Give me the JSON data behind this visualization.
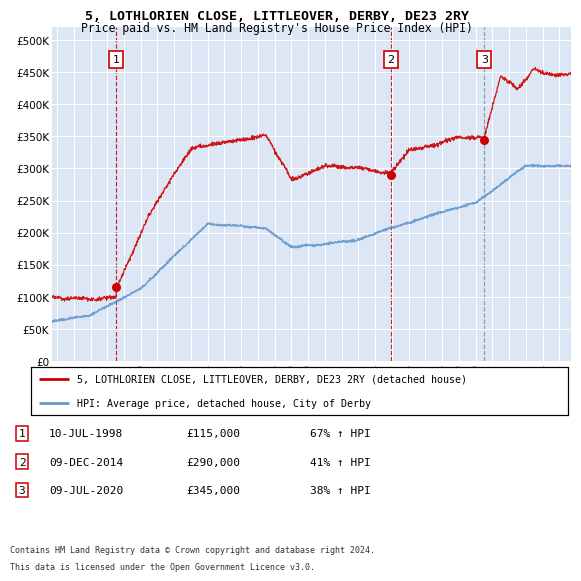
{
  "title1": "5, LOTHLORIEN CLOSE, LITTLEOVER, DERBY, DE23 2RY",
  "title2": "Price paid vs. HM Land Registry's House Price Index (HPI)",
  "plot_bg_color": "#dce6f5",
  "sale_dates": [
    1998.53,
    2014.94,
    2020.52
  ],
  "sale_prices": [
    115000,
    290000,
    345000
  ],
  "sale_labels": [
    "1",
    "2",
    "3"
  ],
  "vline_colors": [
    "#cc0000",
    "#cc0000",
    "#888888"
  ],
  "sale_color": "#cc0000",
  "hpi_color": "#6699cc",
  "ylim": [
    0,
    520000
  ],
  "yticks": [
    0,
    50000,
    100000,
    150000,
    200000,
    250000,
    300000,
    350000,
    400000,
    450000,
    500000
  ],
  "ytick_labels": [
    "£0",
    "£50K",
    "£100K",
    "£150K",
    "£200K",
    "£250K",
    "£300K",
    "£350K",
    "£400K",
    "£450K",
    "£500K"
  ],
  "xlim_start": 1994.7,
  "xlim_end": 2025.7,
  "xticks": [
    1995,
    1996,
    1997,
    1998,
    1999,
    2000,
    2001,
    2002,
    2003,
    2004,
    2005,
    2006,
    2007,
    2008,
    2009,
    2010,
    2011,
    2012,
    2013,
    2014,
    2015,
    2016,
    2017,
    2018,
    2019,
    2020,
    2021,
    2022,
    2023,
    2024,
    2025
  ],
  "legend_label_red": "5, LOTHLORIEN CLOSE, LITTLEOVER, DERBY, DE23 2RY (detached house)",
  "legend_label_blue": "HPI: Average price, detached house, City of Derby",
  "table_rows": [
    [
      "1",
      "10-JUL-1998",
      "£115,000",
      "67% ↑ HPI"
    ],
    [
      "2",
      "09-DEC-2014",
      "£290,000",
      "41% ↑ HPI"
    ],
    [
      "3",
      "09-JUL-2020",
      "£345,000",
      "38% ↑ HPI"
    ]
  ],
  "footer1": "Contains HM Land Registry data © Crown copyright and database right 2024.",
  "footer2": "This data is licensed under the Open Government Licence v3.0."
}
